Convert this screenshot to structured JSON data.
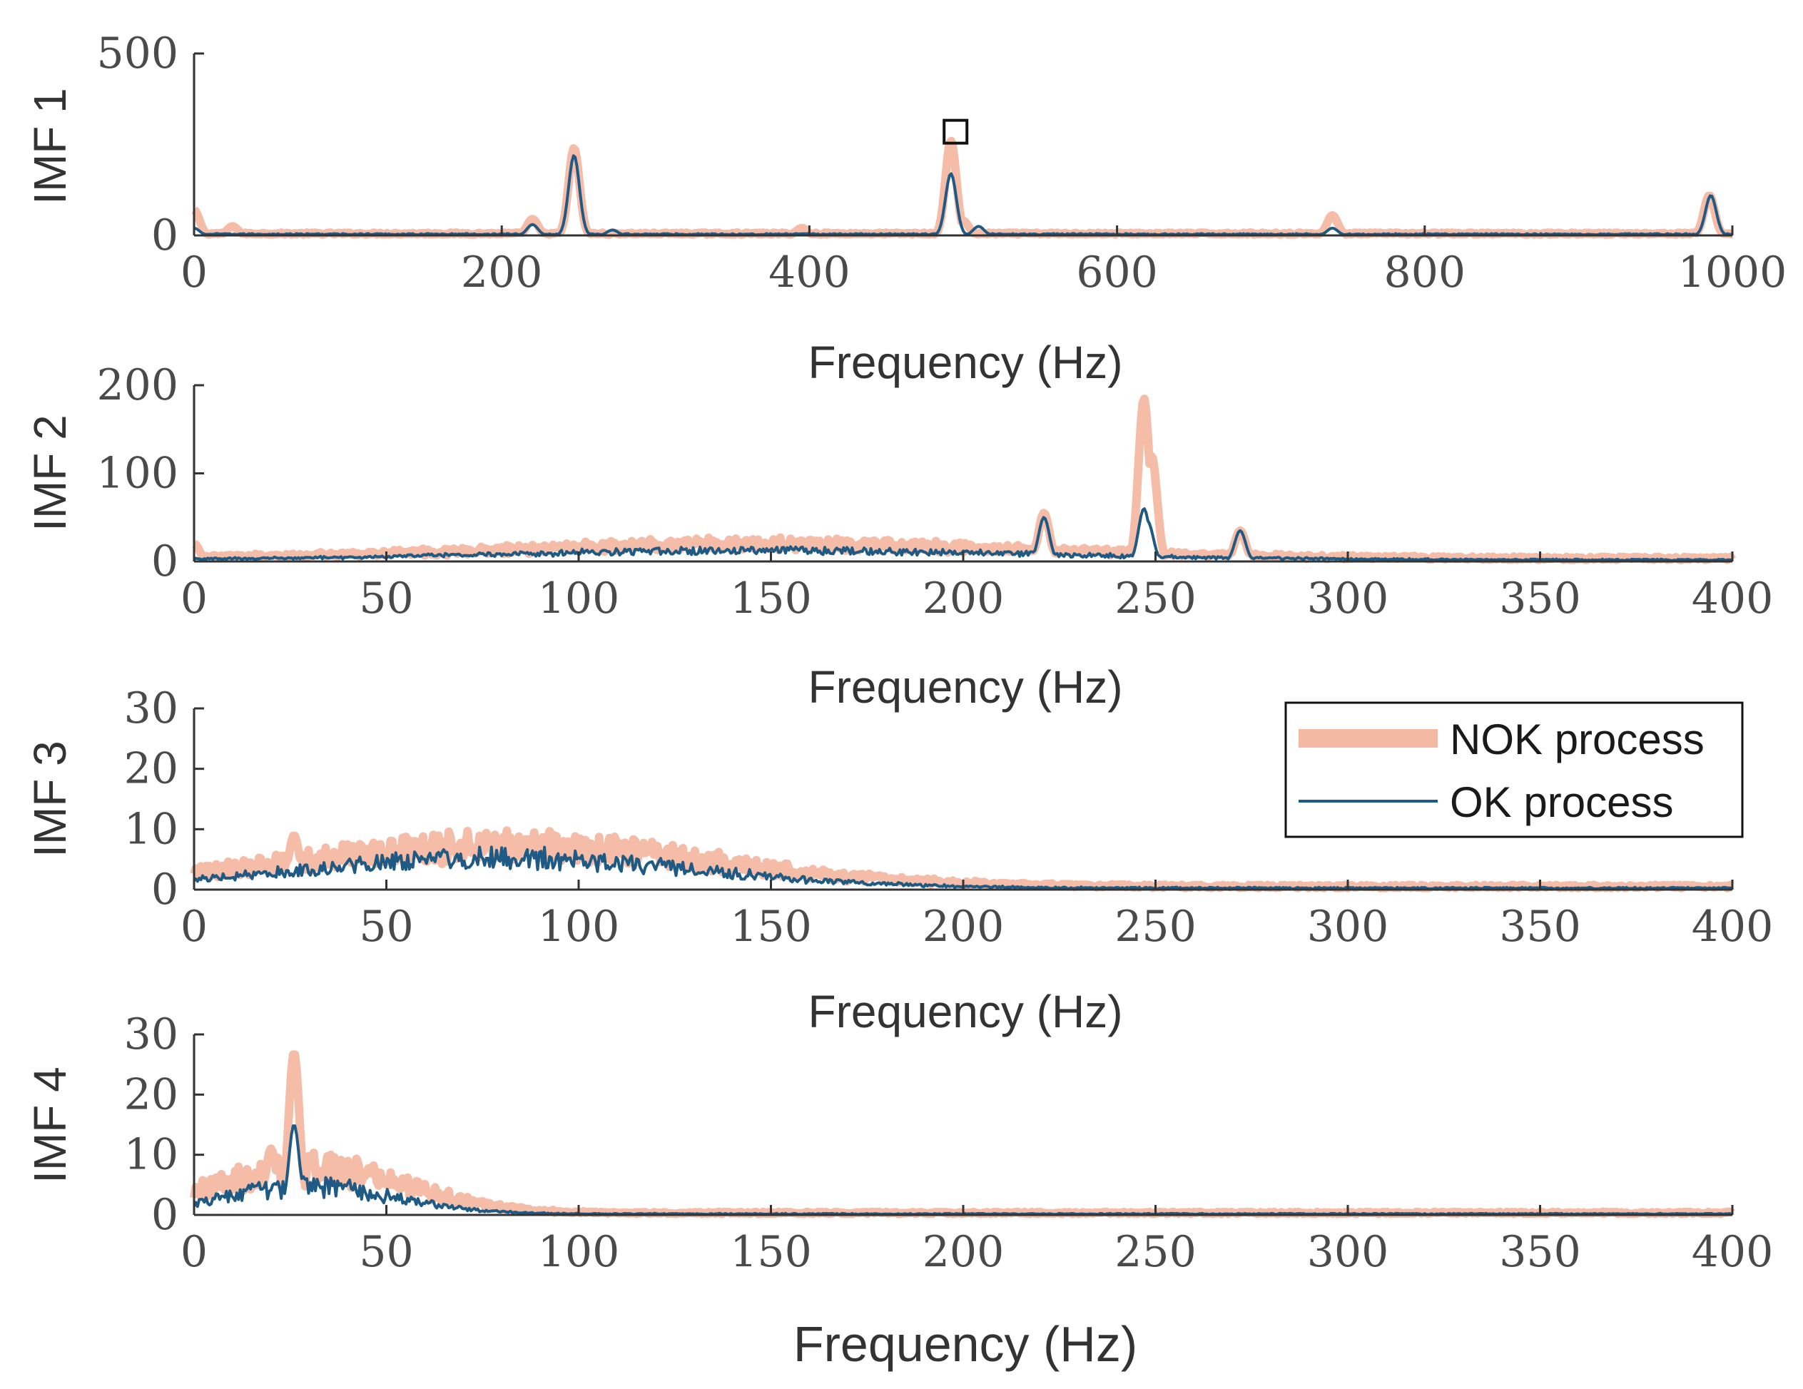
{
  "colors": {
    "nok": "#f4b9a3",
    "ok": "#1f5a84",
    "axis": "#333333"
  },
  "legend": {
    "nok_label": "NOK process",
    "ok_label": "OK process",
    "placement": "inside top-right of IMF 3 panel"
  },
  "chart_data": [
    {
      "type": "line",
      "ylabel": "IMF 1",
      "xlabel": "Frequency (Hz)",
      "xlim": [
        0,
        1000
      ],
      "ylim": [
        0,
        500
      ],
      "xticks": [
        "0",
        "200",
        "400",
        "600",
        "800",
        "1000"
      ],
      "yticks": [
        "0",
        "500"
      ],
      "marker": {
        "x": 495,
        "y": 285,
        "shape": "square"
      },
      "series": [
        {
          "name": "NOK process",
          "peaks": [
            [
              0,
              70
            ],
            [
              25,
              25
            ],
            [
              220,
              45
            ],
            [
              247,
              240
            ],
            [
              395,
              20
            ],
            [
              492,
              260
            ],
            [
              500,
              40
            ],
            [
              740,
              55
            ],
            [
              985,
              110
            ]
          ],
          "baseline": 6
        },
        {
          "name": "OK process",
          "peaks": [
            [
              0,
              20
            ],
            [
              220,
              30
            ],
            [
              247,
              220
            ],
            [
              272,
              15
            ],
            [
              490,
              40
            ],
            [
              492,
              170
            ],
            [
              510,
              25
            ],
            [
              740,
              20
            ],
            [
              986,
              110
            ]
          ],
          "baseline": 4
        }
      ]
    },
    {
      "type": "line",
      "ylabel": "IMF 2",
      "xlabel": "Frequency (Hz)",
      "xlim": [
        0,
        400
      ],
      "ylim": [
        0,
        200
      ],
      "xticks": [
        "0",
        "50",
        "100",
        "150",
        "200",
        "250",
        "300",
        "350",
        "400"
      ],
      "yticks": [
        "0",
        "100",
        "200"
      ],
      "series": [
        {
          "name": "NOK process",
          "peaks": [
            [
              0,
              20
            ],
            [
              221,
              55
            ],
            [
              247,
              185
            ],
            [
              249,
              120
            ],
            [
              272,
              35
            ]
          ],
          "hump": {
            "center": 150,
            "width": 70,
            "height": 18
          },
          "baseline": 4
        },
        {
          "name": "OK process",
          "peaks": [
            [
              221,
              50
            ],
            [
              247,
              60
            ],
            [
              248,
              45
            ],
            [
              272,
              35
            ]
          ],
          "hump": {
            "center": 150,
            "width": 70,
            "height": 12
          },
          "baseline": 2
        }
      ]
    },
    {
      "type": "line",
      "ylabel": "IMF 3",
      "xlabel": "Frequency (Hz)",
      "xlim": [
        0,
        400
      ],
      "ylim": [
        0,
        30
      ],
      "xticks": [
        "0",
        "50",
        "100",
        "150",
        "200",
        "250",
        "300",
        "350",
        "400"
      ],
      "yticks": [
        "0",
        "10",
        "20",
        "30"
      ],
      "series": [
        {
          "name": "NOK process",
          "peaks": [
            [
              26,
              9
            ]
          ],
          "hump": {
            "center": 80,
            "width": 55,
            "height": 7.5
          },
          "baseline": 0.6
        },
        {
          "name": "OK process",
          "peaks": [],
          "hump": {
            "center": 80,
            "width": 50,
            "height": 5.5
          },
          "baseline": 0.3
        }
      ]
    },
    {
      "type": "line",
      "ylabel": "IMF 4",
      "xlabel": "Frequency (Hz)",
      "xlim": [
        0,
        400
      ],
      "ylim": [
        0,
        30
      ],
      "xticks": [
        "0",
        "50",
        "100",
        "150",
        "200",
        "250",
        "300",
        "350",
        "400"
      ],
      "yticks": [
        "0",
        "10",
        "20",
        "30"
      ],
      "series": [
        {
          "name": "NOK process",
          "peaks": [
            [
              20,
              11
            ],
            [
              26,
              27
            ]
          ],
          "hump": {
            "center": 30,
            "width": 25,
            "height": 8
          },
          "baseline": 0.4
        },
        {
          "name": "OK process",
          "peaks": [
            [
              26,
              15
            ]
          ],
          "hump": {
            "center": 30,
            "width": 22,
            "height": 5
          },
          "baseline": 0.2
        }
      ]
    }
  ]
}
